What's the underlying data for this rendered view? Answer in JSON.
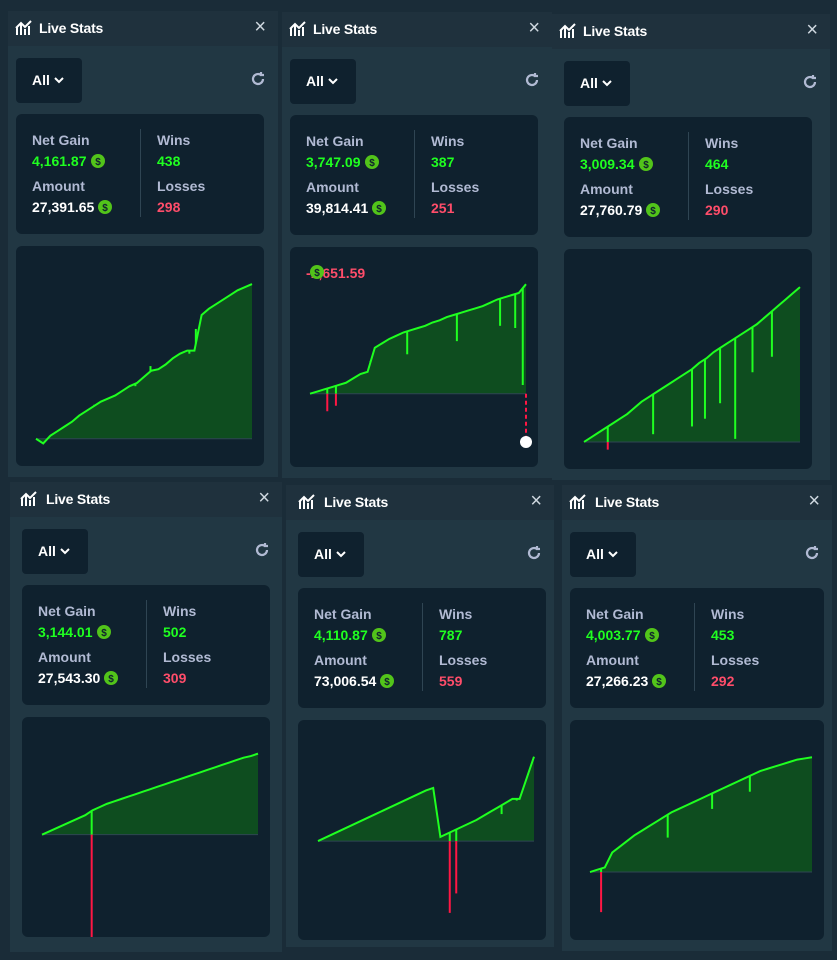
{
  "colors": {
    "profit": "#1fff20",
    "loss": "#ff1744",
    "profit_fill": "#0e4d1f",
    "loss_fill": "#5c1a25",
    "card_bg": "#0f212e",
    "panel_bg": "#213743",
    "zero_line": "#2f4553"
  },
  "icons": {
    "title": "chart-icon",
    "close": "close-icon",
    "dropdown": "chevron-down-icon",
    "refresh": "refresh-icon",
    "currency": "coin-icon"
  },
  "panels": [
    {
      "title": "Live Stats",
      "close_symbol": "×",
      "filter": "All",
      "net_gain_label": "Net Gain",
      "net_gain": "4,161.87",
      "amount_label": "Amount",
      "amount": "27,391.65",
      "wins_label": "Wins",
      "wins": "438",
      "losses_label": "Losses",
      "losses": "298",
      "hover_value": ""
    },
    {
      "title": "Live Stats",
      "close_symbol": "×",
      "filter": "All",
      "net_gain_label": "Net Gain",
      "net_gain": "3,747.09",
      "amount_label": "Amount",
      "amount": "39,814.41",
      "wins_label": "Wins",
      "wins": "387",
      "losses_label": "Losses",
      "losses": "251",
      "hover_value": "-1,651.59"
    },
    {
      "title": "Live Stats",
      "close_symbol": "×",
      "filter": "All",
      "net_gain_label": "Net Gain",
      "net_gain": "3,009.34",
      "amount_label": "Amount",
      "amount": "27,760.79",
      "wins_label": "Wins",
      "wins": "464",
      "losses_label": "Losses",
      "losses": "290",
      "hover_value": ""
    },
    {
      "title": "Live Stats",
      "close_symbol": "×",
      "filter": "All",
      "net_gain_label": "Net Gain",
      "net_gain": "3,144.01",
      "amount_label": "Amount",
      "amount": "27,543.30",
      "wins_label": "Wins",
      "wins": "502",
      "losses_label": "Losses",
      "losses": "309",
      "hover_value": ""
    },
    {
      "title": "Live Stats",
      "close_symbol": "×",
      "filter": "All",
      "net_gain_label": "Net Gain",
      "net_gain": "4,110.87",
      "amount_label": "Amount",
      "amount": "73,006.54",
      "wins_label": "Wins",
      "wins": "787",
      "losses_label": "Losses",
      "losses": "559",
      "hover_value": ""
    },
    {
      "title": "Live Stats",
      "close_symbol": "×",
      "filter": "All",
      "net_gain_label": "Net Gain",
      "net_gain": "4,003.77",
      "amount_label": "Amount",
      "amount": "27,266.23",
      "wins_label": "Wins",
      "wins": "453",
      "losses_label": "Losses",
      "losses": "292",
      "hover_value": ""
    }
  ],
  "chart_data": [
    {
      "type": "area",
      "y_final": 4161.87,
      "y_min": -60,
      "shape": [
        0,
        -0.03,
        0.02,
        0.05,
        0.08,
        0.11,
        0.15,
        0.18,
        0.21,
        0.24,
        0.26,
        0.28,
        0.31,
        0.34,
        0.36,
        0.4,
        0.44,
        0.45,
        0.48,
        0.52,
        0.55,
        0.57,
        0.57,
        0.8,
        0.84,
        0.87,
        0.9,
        0.93,
        0.96,
        0.98,
        1
      ],
      "spikes": [
        [
          0.27,
          0.22
        ],
        [
          0.46,
          0.34
        ],
        [
          0.53,
          0.47
        ],
        [
          0.71,
          0.55
        ],
        [
          0.74,
          0.71
        ]
      ]
    },
    {
      "type": "area",
      "y_final": 3747.09,
      "y_min": -1651.59,
      "shape": [
        0,
        0.02,
        0.04,
        0.06,
        0.08,
        0.1,
        0.14,
        0.18,
        0.2,
        0.42,
        0.46,
        0.5,
        0.53,
        0.56,
        0.58,
        0.6,
        0.62,
        0.65,
        0.67,
        0.7,
        0.72,
        0.74,
        0.76,
        0.78,
        0.8,
        0.83,
        0.86,
        0.88,
        0.9,
        0.92,
        1
      ],
      "spikes": [
        [
          0.08,
          -0.16
        ],
        [
          0.12,
          -0.11
        ],
        [
          0.28,
          0.3
        ],
        [
          0.45,
          0.36
        ],
        [
          0.68,
          0.48
        ],
        [
          0.88,
          0.62
        ],
        [
          0.95,
          0.6
        ],
        [
          0.985,
          0.08
        ]
      ],
      "hover_point": -1651.59
    },
    {
      "type": "area",
      "y_final": 3009.34,
      "y_min": -40,
      "shape": [
        0,
        0.03,
        0.06,
        0.09,
        0.12,
        0.15,
        0.18,
        0.22,
        0.26,
        0.29,
        0.32,
        0.35,
        0.38,
        0.41,
        0.44,
        0.47,
        0.51,
        0.54,
        0.58,
        0.61,
        0.64,
        0.67,
        0.7,
        0.73,
        0.76,
        0.8,
        0.84,
        0.88,
        0.92,
        0.96,
        1
      ],
      "spikes": [
        [
          0.11,
          -0.05
        ],
        [
          0.32,
          0.05
        ],
        [
          0.5,
          0.1
        ],
        [
          0.56,
          0.15
        ],
        [
          0.63,
          0.25
        ],
        [
          0.7,
          0.02
        ],
        [
          0.78,
          0.45
        ],
        [
          0.87,
          0.55
        ]
      ]
    },
    {
      "type": "area",
      "y_final": 3144.01,
      "y_min": -3000,
      "shape": [
        0,
        0.04,
        0.08,
        0.12,
        0.16,
        0.2,
        0.24,
        0.3,
        0.34,
        0.38,
        0.41,
        0.44,
        0.47,
        0.5,
        0.53,
        0.56,
        0.59,
        0.62,
        0.65,
        0.68,
        0.71,
        0.74,
        0.77,
        0.8,
        0.83,
        0.86,
        0.89,
        0.92,
        0.95,
        0.97,
        1
      ],
      "spikes": [
        [
          0.23,
          -2.15
        ]
      ]
    },
    {
      "type": "area",
      "y_final": 4110.87,
      "y_min": -3600,
      "shape": [
        0,
        0.04,
        0.08,
        0.12,
        0.16,
        0.2,
        0.24,
        0.28,
        0.32,
        0.36,
        0.4,
        0.44,
        0.48,
        0.52,
        0.56,
        0.6,
        0.63,
        0.05,
        0.09,
        0.13,
        0.17,
        0.21,
        0.25,
        0.3,
        0.35,
        0.4,
        0.45,
        0.5,
        0.5,
        0.75,
        1
      ],
      "spikes": [
        [
          0.61,
          -0.85
        ],
        [
          0.64,
          -0.62
        ],
        [
          0.85,
          0.32
        ],
        [
          0.92,
          0.48
        ]
      ]
    },
    {
      "type": "area",
      "y_final": 4003.77,
      "y_min": -1500,
      "shape": [
        0,
        0.02,
        0.04,
        0.17,
        0.22,
        0.27,
        0.32,
        0.36,
        0.4,
        0.44,
        0.48,
        0.52,
        0.55,
        0.58,
        0.61,
        0.64,
        0.67,
        0.7,
        0.73,
        0.76,
        0.79,
        0.82,
        0.85,
        0.88,
        0.9,
        0.92,
        0.94,
        0.96,
        0.98,
        0.99,
        1
      ],
      "spikes": [
        [
          0.05,
          -0.35
        ],
        [
          0.35,
          0.3
        ],
        [
          0.55,
          0.55
        ],
        [
          0.72,
          0.7
        ]
      ]
    }
  ]
}
